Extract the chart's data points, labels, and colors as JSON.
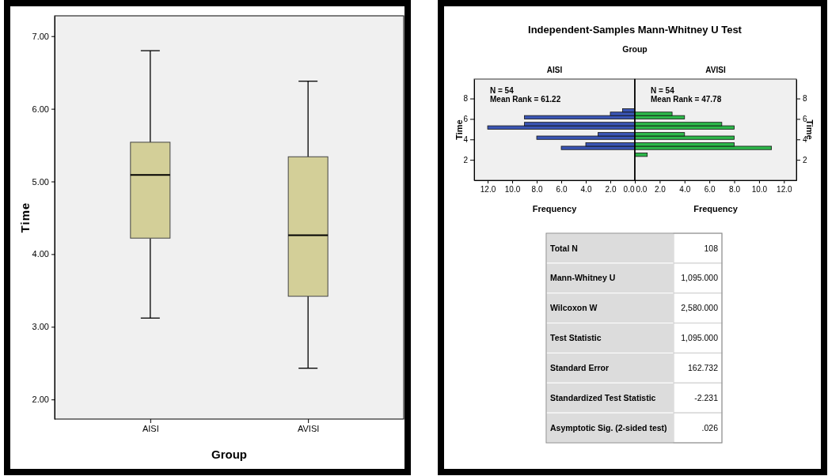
{
  "chart_data": [
    {
      "type": "box",
      "xlabel": "Group",
      "ylabel": "Time",
      "categories": [
        "AISI",
        "AVISI"
      ],
      "color": "#d3cf98",
      "boxes": [
        {
          "low": 3.12,
          "q1": 4.22,
          "median": 5.09,
          "q3": 5.54,
          "high": 6.8
        },
        {
          "low": 2.43,
          "q1": 3.42,
          "median": 4.26,
          "q3": 5.34,
          "high": 6.38
        }
      ],
      "ylim": [
        1.73,
        7.28
      ],
      "yticks": [
        {
          "value": 2,
          "label": "2.00"
        },
        {
          "value": 3,
          "label": "3.00"
        },
        {
          "value": 4,
          "label": "4.00"
        },
        {
          "value": 5,
          "label": "5.00"
        },
        {
          "value": 6,
          "label": "6.00"
        },
        {
          "value": 7,
          "label": "7.00"
        }
      ]
    },
    {
      "type": "histogram",
      "orientation": "horizontal",
      "title": "Independent-Samples Mann-Whitney U Test",
      "subtitle": "Group",
      "xlabel": "Frequency",
      "ylabel": "Time",
      "bins": [
        2.33,
        2.67,
        3,
        3.33,
        3.67,
        4,
        4.33,
        4.67,
        5,
        5.33,
        5.67,
        6,
        6.33,
        6.67,
        7
      ],
      "series": [
        {
          "name": "AISI",
          "color": "#3a55b4",
          "values": [
            0,
            0,
            6,
            4,
            0,
            8,
            3,
            0,
            12,
            9,
            0,
            9,
            2,
            1
          ]
        }
      ],
      "xlim": [
        13.1,
        0
      ],
      "xticks": [
        {
          "value": 12,
          "label": "12.0"
        },
        {
          "value": 10,
          "label": "10.0"
        },
        {
          "value": 8,
          "label": "8.0"
        },
        {
          "value": 6,
          "label": "6.0"
        },
        {
          "value": 4,
          "label": "4.0"
        },
        {
          "value": 2,
          "label": "2.0"
        },
        {
          "value": 0,
          "label": "0.0"
        }
      ],
      "ylim": [
        0,
        9.9
      ],
      "yticks": [
        2,
        4,
        6,
        8
      ],
      "annotations": [
        "N = 54",
        "Mean Rank = 61.22"
      ]
    },
    {
      "type": "histogram",
      "orientation": "horizontal",
      "xlabel": "Frequency",
      "ylabel": "Time",
      "bins": [
        2.33,
        2.67,
        3,
        3.33,
        3.67,
        4,
        4.33,
        4.67,
        5,
        5.33,
        5.67,
        6,
        6.33,
        6.67,
        7
      ],
      "series": [
        {
          "name": "AVISI",
          "color": "#2db84a",
          "values": [
            1,
            0,
            11,
            8,
            0,
            8,
            4,
            0,
            8,
            7,
            0,
            4,
            3,
            0
          ]
        }
      ],
      "xlim": [
        0,
        13
      ],
      "xticks": [
        {
          "value": 0,
          "label": "0.0"
        },
        {
          "value": 2,
          "label": "2.0"
        },
        {
          "value": 4,
          "label": "4.0"
        },
        {
          "value": 6,
          "label": "6.0"
        },
        {
          "value": 8,
          "label": "8.0"
        },
        {
          "value": 10,
          "label": "10.0"
        },
        {
          "value": 12,
          "label": "12.0"
        }
      ],
      "ylim": [
        0,
        9.9
      ],
      "yticks": [
        2,
        4,
        6,
        8
      ],
      "annotations": [
        "N = 54",
        "Mean Rank = 47.78"
      ]
    },
    {
      "type": "other",
      "categories": [
        "Total N",
        "Mann-Whitney U",
        "Wilcoxon W",
        "Test Statistic",
        "Standard Error",
        "Standardized Test Statistic",
        "Asymptotic Sig. (2-sided test)"
      ],
      "value_labels": [
        "108",
        "1,095.000",
        "2,580.000",
        "1,095.000",
        "162.732",
        "-2.231",
        ".026"
      ]
    }
  ]
}
